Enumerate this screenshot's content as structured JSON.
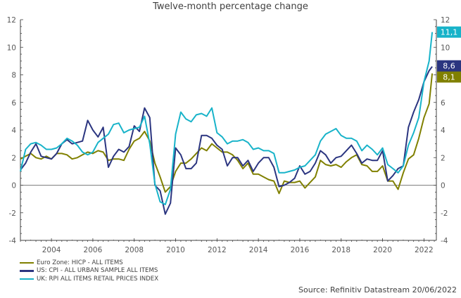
{
  "chart_data": {
    "type": "line",
    "title": "Twelve-month percentage change",
    "xlabel": "",
    "ylabel": "",
    "xlim": [
      2002.5,
      2022.6
    ],
    "ylim": [
      -4,
      12
    ],
    "y_ticks": [
      -4,
      -2,
      0,
      2,
      4,
      6,
      8,
      10,
      12
    ],
    "y_tick_labels": [
      "-4",
      "-2",
      "0",
      "2",
      "4",
      "6",
      "8",
      "10",
      "12"
    ],
    "x_ticks": [
      2004,
      2006,
      2008,
      2010,
      2012,
      2014,
      2016,
      2018,
      2020,
      2022
    ],
    "x_tick_labels": [
      "2004",
      "2006",
      "2008",
      "2010",
      "2012",
      "2014",
      "2016",
      "2018",
      "2020",
      "2022"
    ],
    "dual_y_axis": true,
    "grid": false,
    "zero_line": true,
    "legend_position": "bottom-left",
    "x": [
      2002.5,
      2002.75,
      2003.0,
      2003.25,
      2003.5,
      2003.75,
      2004.0,
      2004.25,
      2004.5,
      2004.75,
      2005.0,
      2005.25,
      2005.5,
      2005.75,
      2006.0,
      2006.25,
      2006.5,
      2006.75,
      2007.0,
      2007.25,
      2007.5,
      2007.75,
      2008.0,
      2008.25,
      2008.5,
      2008.75,
      2009.0,
      2009.25,
      2009.5,
      2009.75,
      2010.0,
      2010.25,
      2010.5,
      2010.75,
      2011.0,
      2011.25,
      2011.5,
      2011.75,
      2012.0,
      2012.25,
      2012.5,
      2012.75,
      2013.0,
      2013.25,
      2013.5,
      2013.75,
      2014.0,
      2014.25,
      2014.5,
      2014.75,
      2015.0,
      2015.25,
      2015.5,
      2015.75,
      2016.0,
      2016.25,
      2016.5,
      2016.75,
      2017.0,
      2017.25,
      2017.5,
      2017.75,
      2018.0,
      2018.25,
      2018.5,
      2018.75,
      2019.0,
      2019.25,
      2019.5,
      2019.75,
      2020.0,
      2020.25,
      2020.5,
      2020.75,
      2021.0,
      2021.25,
      2021.5,
      2021.75,
      2022.0,
      2022.25,
      2022.4
    ],
    "series": [
      {
        "name": "Euro Zone: HICP - ALL ITEMS",
        "color": "#808000",
        "end_label": "8,1",
        "values": [
          1.9,
          2.1,
          2.3,
          2.0,
          1.9,
          2.1,
          1.9,
          2.3,
          2.3,
          2.2,
          1.9,
          2.0,
          2.2,
          2.4,
          2.3,
          2.5,
          2.4,
          1.8,
          1.9,
          1.9,
          1.8,
          2.6,
          3.2,
          3.4,
          3.9,
          3.2,
          1.6,
          0.6,
          -0.5,
          -0.1,
          1.0,
          1.6,
          1.6,
          1.9,
          2.3,
          2.7,
          2.5,
          3.0,
          2.7,
          2.4,
          2.4,
          2.2,
          1.8,
          1.2,
          1.6,
          0.8,
          0.8,
          0.6,
          0.4,
          0.3,
          -0.6,
          0.3,
          0.2,
          0.2,
          0.3,
          -0.2,
          0.2,
          0.6,
          1.8,
          1.5,
          1.4,
          1.5,
          1.3,
          1.7,
          2.0,
          2.2,
          1.5,
          1.4,
          1.0,
          1.0,
          1.4,
          0.3,
          0.3,
          -0.3,
          0.9,
          1.9,
          2.2,
          3.4,
          4.9,
          5.9,
          8.1
        ]
      },
      {
        "name": "US: CPI - ALL URBAN SAMPLE ALL ITEMS",
        "color": "#2b3580",
        "end_label": "8,6",
        "values": [
          1.1,
          1.6,
          2.4,
          3.0,
          2.1,
          2.0,
          1.9,
          2.3,
          3.0,
          3.3,
          3.0,
          3.1,
          3.2,
          4.7,
          4.0,
          3.5,
          4.2,
          1.3,
          2.1,
          2.6,
          2.4,
          2.8,
          4.3,
          3.9,
          5.6,
          4.9,
          0.0,
          -0.4,
          -2.1,
          -1.3,
          2.7,
          2.2,
          1.2,
          1.2,
          1.6,
          3.6,
          3.6,
          3.4,
          2.9,
          2.6,
          1.4,
          2.0,
          2.0,
          1.4,
          1.8,
          1.0,
          1.6,
          2.0,
          2.0,
          1.3,
          -0.1,
          0.0,
          0.2,
          0.5,
          1.4,
          0.8,
          1.0,
          1.6,
          2.5,
          2.2,
          1.6,
          2.0,
          2.1,
          2.5,
          2.9,
          2.3,
          1.6,
          1.9,
          1.8,
          1.8,
          2.5,
          0.3,
          0.7,
          1.2,
          1.4,
          4.2,
          5.3,
          6.2,
          7.5,
          8.3,
          8.6
        ]
      },
      {
        "name": "UK: RPI ALL ITEMS RETAIL PRICES INDEX",
        "color": "#18b3c9",
        "end_label": "11,1",
        "values": [
          1.0,
          2.6,
          3.0,
          3.1,
          2.9,
          2.6,
          2.6,
          2.7,
          3.0,
          3.4,
          3.2,
          2.9,
          2.4,
          2.2,
          2.4,
          3.1,
          3.4,
          3.7,
          4.4,
          4.5,
          3.8,
          4.0,
          4.1,
          4.2,
          5.0,
          3.0,
          0.1,
          -1.2,
          -1.4,
          -0.3,
          3.7,
          5.3,
          4.8,
          4.6,
          5.1,
          5.2,
          5.0,
          5.6,
          3.8,
          3.5,
          3.0,
          3.2,
          3.2,
          3.3,
          3.1,
          2.6,
          2.7,
          2.5,
          2.5,
          2.3,
          0.9,
          0.9,
          1.0,
          1.1,
          1.3,
          1.4,
          1.8,
          2.2,
          3.2,
          3.7,
          3.9,
          4.1,
          3.6,
          3.4,
          3.4,
          3.2,
          2.5,
          2.9,
          2.6,
          2.2,
          2.7,
          1.5,
          1.2,
          0.9,
          1.4,
          2.9,
          3.8,
          4.9,
          7.5,
          9.0,
          11.1
        ]
      }
    ]
  },
  "source": "Source: Refinitiv Datastream 20/06/2022"
}
